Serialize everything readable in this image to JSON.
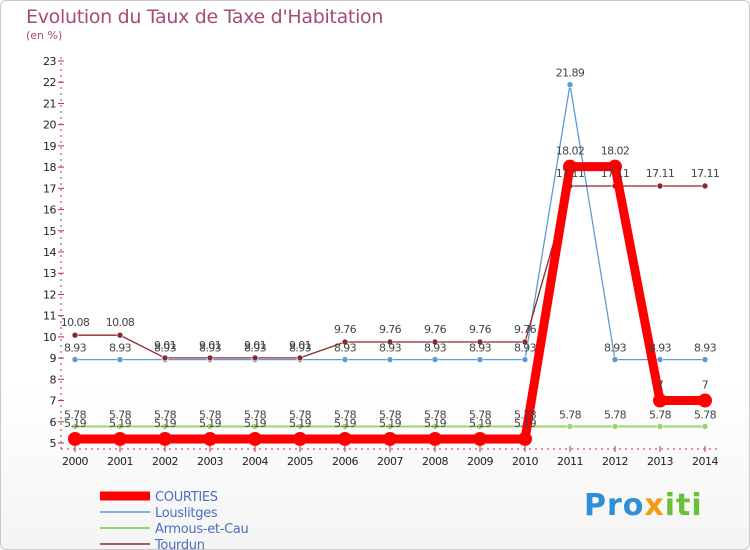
{
  "title": "Evolution du Taux de Taxe d'Habitation",
  "subtitle": "(en %)",
  "logo": {
    "part1": "Pro",
    "part2": "x",
    "part3": "iti"
  },
  "colors": {
    "COURTIES": "#ff0000",
    "Louslitges": "#5b9bd5",
    "Armous-et-Cau": "#9bd46b",
    "Tourdun": "#8b2a2a"
  },
  "chart_data": {
    "type": "line",
    "title": "Evolution du Taux de Taxe d'Habitation",
    "subtitle": "(en %)",
    "xlabel": "",
    "ylabel": "(en %)",
    "ylim": [
      5,
      23
    ],
    "yticks": [
      5,
      6,
      7,
      8,
      9,
      10,
      11,
      12,
      13,
      14,
      15,
      16,
      17,
      18,
      19,
      20,
      21,
      22,
      23
    ],
    "grid": false,
    "legend_position": "bottom-left",
    "x": [
      "2000",
      "2001",
      "2002",
      "2003",
      "2004",
      "2005",
      "2006",
      "2007",
      "2008",
      "2009",
      "2010",
      "2011",
      "2012",
      "2013",
      "2014"
    ],
    "series": [
      {
        "name": "COURTIES",
        "values": [
          5.19,
          5.19,
          5.19,
          5.19,
          5.19,
          5.19,
          5.19,
          5.19,
          5.19,
          5.19,
          5.19,
          18.02,
          18.02,
          7,
          7
        ],
        "labels": [
          "5.19",
          "5.19",
          "5.19",
          "5.19",
          "5.19",
          "5.19",
          "5.19",
          "5.19",
          "5.19",
          "5.19",
          "5.19",
          "18.02",
          "18.02",
          "7",
          "7"
        ]
      },
      {
        "name": "Louslitges",
        "values": [
          8.93,
          8.93,
          8.93,
          8.93,
          8.93,
          8.93,
          8.93,
          8.93,
          8.93,
          8.93,
          8.93,
          21.89,
          8.93,
          8.93,
          8.93
        ],
        "labels": [
          "8.93",
          "8.93",
          "8.93",
          "8.93",
          "8.93",
          "8.93",
          "8.93",
          "8.93",
          "8.93",
          "8.93",
          "8.93",
          "21.89",
          "8.93",
          "8.93",
          "8.93"
        ]
      },
      {
        "name": "Armous-et-Cau",
        "values": [
          5.78,
          5.78,
          5.78,
          5.78,
          5.78,
          5.78,
          5.78,
          5.78,
          5.78,
          5.78,
          5.78,
          5.78,
          5.78,
          5.78,
          5.78
        ],
        "labels": [
          "5.78",
          "5.78",
          "5.78",
          "5.78",
          "5.78",
          "5.78",
          "5.78",
          "5.78",
          "5.78",
          "5.78",
          "5.78",
          "5.78",
          "5.78",
          "5.78",
          "5.78"
        ]
      },
      {
        "name": "Tourdun",
        "values": [
          10.08,
          10.08,
          9.01,
          9.01,
          9.01,
          9.01,
          9.76,
          9.76,
          9.76,
          9.76,
          9.76,
          17.11,
          17.11,
          17.11,
          17.11
        ],
        "labels": [
          "10.08",
          "10.08",
          "9.01",
          "9.01",
          "9.01",
          "9.01",
          "9.76",
          "9.76",
          "9.76",
          "9.76",
          "9.76",
          "17.11",
          "17.11",
          "17.11",
          "17.11"
        ]
      }
    ]
  }
}
